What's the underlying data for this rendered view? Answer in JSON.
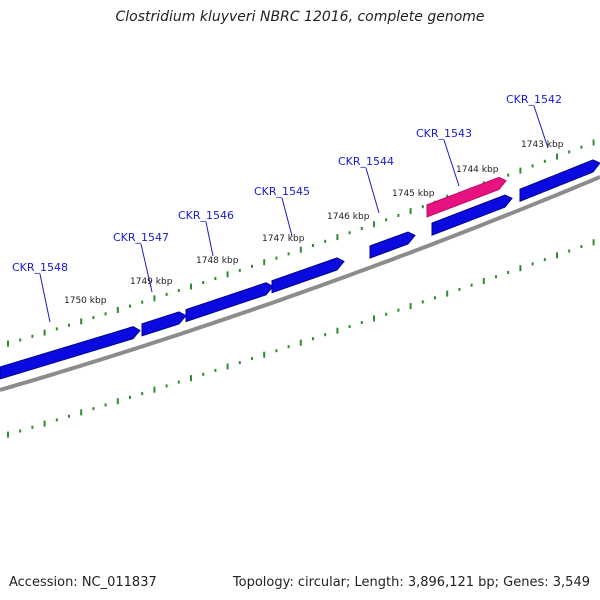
{
  "title": "Clostridium kluyveri NBRC 12016, complete genome",
  "footer": {
    "accession": "Accession: NC_011837",
    "stats": "Topology: circular; Length: 3,896,121 bp; Genes: 3,549"
  },
  "colors": {
    "forward_gene": "#0a0ae0",
    "highlight_gene": "#e6127f",
    "backbone": "#8c8c8c",
    "ticks": "#2e8b2e",
    "label": "#1a1acc"
  },
  "tick_labels": [
    "1750 kbp",
    "1749 kbp",
    "1748 kbp",
    "1747 kbp",
    "1746 kbp",
    "1745 kbp",
    "1744 kbp",
    "1743 kbp"
  ],
  "genes": [
    {
      "id": "CKR_1548",
      "highlight": false
    },
    {
      "id": "CKR_1547",
      "highlight": false
    },
    {
      "id": "CKR_1546",
      "highlight": false
    },
    {
      "id": "CKR_1545",
      "highlight": false
    },
    {
      "id": "CKR_1544",
      "highlight": false
    },
    {
      "id": "CKR_1543",
      "highlight": true
    },
    {
      "id": "CKR_1542",
      "highlight": false
    }
  ]
}
